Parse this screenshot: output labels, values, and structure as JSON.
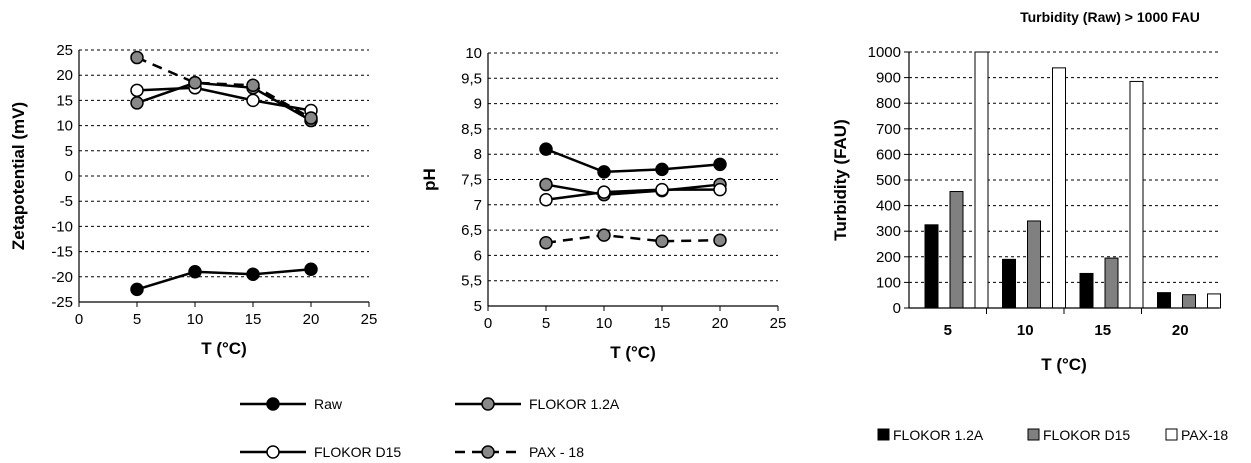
{
  "chart_data": [
    {
      "type": "line",
      "title": "",
      "xlabel": "T (°C)",
      "ylabel": "Zetapotential (mV)",
      "xlim": [
        0,
        25
      ],
      "ylim": [
        -25,
        25
      ],
      "xticks": [
        "0",
        "5",
        "10",
        "15",
        "20",
        "25"
      ],
      "yticks": [
        "-25",
        "-20",
        "-15",
        "-10",
        "-5",
        "0",
        "5",
        "10",
        "15",
        "20",
        "25"
      ],
      "grid": true,
      "x": [
        5,
        10,
        15,
        20
      ],
      "series": [
        {
          "name": "Raw",
          "values": [
            -22.5,
            -19,
            -19.5,
            -18.5
          ],
          "marker_fill": "#000000",
          "dashed": false
        },
        {
          "name": "FLOKOR 1.2A",
          "values": [
            14.5,
            18.5,
            17.5,
            11
          ],
          "marker_fill": "#888888",
          "dashed": false
        },
        {
          "name": "FLOKOR D15",
          "values": [
            17,
            17.5,
            15,
            13
          ],
          "marker_fill": "#ffffff",
          "dashed": false
        },
        {
          "name": "PAX - 18",
          "values": [
            23.5,
            18.5,
            18,
            11.5
          ],
          "marker_fill": "#888888",
          "dashed": true
        }
      ]
    },
    {
      "type": "line",
      "title": "",
      "xlabel": "T (°C)",
      "ylabel": "pH",
      "xlim": [
        0,
        25
      ],
      "ylim": [
        5,
        10
      ],
      "xticks": [
        "0",
        "5",
        "10",
        "15",
        "20",
        "25"
      ],
      "yticks": [
        "5",
        "5,5",
        "6",
        "6,5",
        "7",
        "7,5",
        "8",
        "8,5",
        "9",
        "9,5",
        "10"
      ],
      "grid": true,
      "x": [
        5,
        10,
        15,
        20
      ],
      "series": [
        {
          "name": "Raw",
          "values": [
            8.1,
            7.65,
            7.7,
            7.8
          ],
          "marker_fill": "#000000",
          "dashed": false
        },
        {
          "name": "FLOKOR 1.2A",
          "values": [
            7.4,
            7.2,
            7.28,
            7.4
          ],
          "marker_fill": "#888888",
          "dashed": false
        },
        {
          "name": "FLOKOR D15",
          "values": [
            7.1,
            7.25,
            7.3,
            7.3
          ],
          "marker_fill": "#ffffff",
          "dashed": false
        },
        {
          "name": "PAX - 18",
          "values": [
            6.25,
            6.4,
            6.28,
            6.3
          ],
          "marker_fill": "#888888",
          "dashed": true
        }
      ]
    },
    {
      "type": "bar",
      "title": "Turbidity (Raw) > 1000 FAU",
      "xlabel": "T (°C)",
      "ylabel": "Turbidity (FAU)",
      "ylim": [
        0,
        1000
      ],
      "yticks": [
        "0",
        "100",
        "200",
        "300",
        "400",
        "500",
        "600",
        "700",
        "800",
        "900",
        "1000"
      ],
      "grid": true,
      "categories": [
        "5",
        "10",
        "15",
        "20"
      ],
      "series": [
        {
          "name": "FLOKOR 1.2A",
          "values": [
            325,
            190,
            135,
            60
          ],
          "color": "#000000"
        },
        {
          "name": "FLOKOR D15",
          "values": [
            455,
            340,
            195,
            52
          ],
          "color": "#808080"
        },
        {
          "name": "PAX-18",
          "values": [
            1000,
            938,
            885,
            55
          ],
          "color": "#ffffff"
        }
      ]
    }
  ],
  "line_legend": [
    {
      "label": "Raw",
      "marker_fill": "#000000",
      "dashed": false
    },
    {
      "label": "FLOKOR 1.2A",
      "marker_fill": "#888888",
      "dashed": false
    },
    {
      "label": "FLOKOR D15",
      "marker_fill": "#ffffff",
      "dashed": false
    },
    {
      "label": "PAX - 18",
      "marker_fill": "#888888",
      "dashed": true
    }
  ],
  "bar_legend": [
    {
      "label": "FLOKOR 1.2A",
      "color": "#000000"
    },
    {
      "label": "FLOKOR D15",
      "color": "#808080"
    },
    {
      "label": "PAX-18",
      "color": "#ffffff"
    }
  ]
}
